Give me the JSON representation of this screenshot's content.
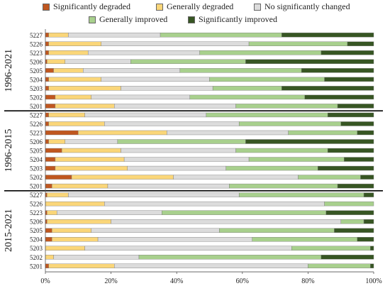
{
  "chart_data": {
    "type": "bar",
    "orientation": "horizontal-stacked-100",
    "legend": [
      {
        "name": "Significantly degraded",
        "color": "#c0571f"
      },
      {
        "name": "Generally degraded",
        "color": "#fad679"
      },
      {
        "name": "No significantly changed",
        "color": "#dcdcdc"
      },
      {
        "name": "Generally improved",
        "color": "#a8d08d"
      },
      {
        "name": "Significantly improved",
        "color": "#375623"
      }
    ],
    "xticks": [
      "0%",
      "20%",
      "40%",
      "60%",
      "80%",
      "100%"
    ],
    "xlim": [
      0,
      100
    ],
    "groups": [
      {
        "label": "1996-2021",
        "rows": [
          {
            "category": "5227",
            "values": [
              1,
              6,
              28,
              37,
              28
            ]
          },
          {
            "category": "5226",
            "values": [
              1,
              16,
              45,
              30,
              8
            ]
          },
          {
            "category": "5223",
            "values": [
              1,
              12,
              34,
              37,
              16
            ]
          },
          {
            "category": "5206",
            "values": [
              0.5,
              5.5,
              20,
              35,
              39
            ]
          },
          {
            "category": "5205",
            "values": [
              2.5,
              9,
              29.5,
              37,
              22
            ]
          },
          {
            "category": "5204",
            "values": [
              1,
              16,
              33,
              35,
              15
            ]
          },
          {
            "category": "5203",
            "values": [
              1,
              22,
              28,
              21,
              28
            ]
          },
          {
            "category": "5202",
            "values": [
              3,
              11,
              30,
              35,
              21
            ]
          },
          {
            "category": "5201",
            "values": [
              3,
              18,
              37,
              31,
              11
            ]
          }
        ]
      },
      {
        "label": "1996-2015",
        "rows": [
          {
            "category": "5227",
            "values": [
              1,
              11,
              37,
              37,
              14
            ]
          },
          {
            "category": "5226",
            "values": [
              1,
              17,
              41,
              31,
              10
            ]
          },
          {
            "category": "5223",
            "values": [
              10,
              27,
              37,
              21,
              5
            ]
          },
          {
            "category": "5206",
            "values": [
              1,
              5,
              16,
              39,
              39
            ]
          },
          {
            "category": "5205",
            "values": [
              5,
              18,
              35,
              28,
              14
            ]
          },
          {
            "category": "5204",
            "values": [
              3,
              21,
              38,
              29,
              9
            ]
          },
          {
            "category": "5203",
            "values": [
              3,
              22,
              30,
              28,
              17
            ]
          },
          {
            "category": "5202",
            "values": [
              8,
              31,
              38,
              19,
              4
            ]
          },
          {
            "category": "5201",
            "values": [
              2,
              17,
              37,
              33,
              11
            ]
          }
        ]
      },
      {
        "label": "2015-2021",
        "rows": [
          {
            "category": "5227",
            "values": [
              0.5,
              6.5,
              52,
              38,
              3
            ]
          },
          {
            "category": "5226",
            "values": [
              0,
              18,
              67,
              15,
              0
            ]
          },
          {
            "category": "5223",
            "values": [
              0.5,
              3,
              32,
              50,
              14.5
            ]
          },
          {
            "category": "5206",
            "values": [
              0.5,
              19.5,
              70,
              7,
              3
            ]
          },
          {
            "category": "5205",
            "values": [
              2,
              12,
              39,
              35,
              12
            ]
          },
          {
            "category": "5204",
            "values": [
              2,
              14,
              47,
              32,
              5
            ]
          },
          {
            "category": "5203",
            "values": [
              0,
              12,
              63,
              24,
              1
            ]
          },
          {
            "category": "5202",
            "values": [
              0,
              2.5,
              26,
              55.5,
              16
            ]
          },
          {
            "category": "5201",
            "values": [
              1,
              20,
              59,
              19,
              1
            ]
          }
        ]
      }
    ]
  }
}
